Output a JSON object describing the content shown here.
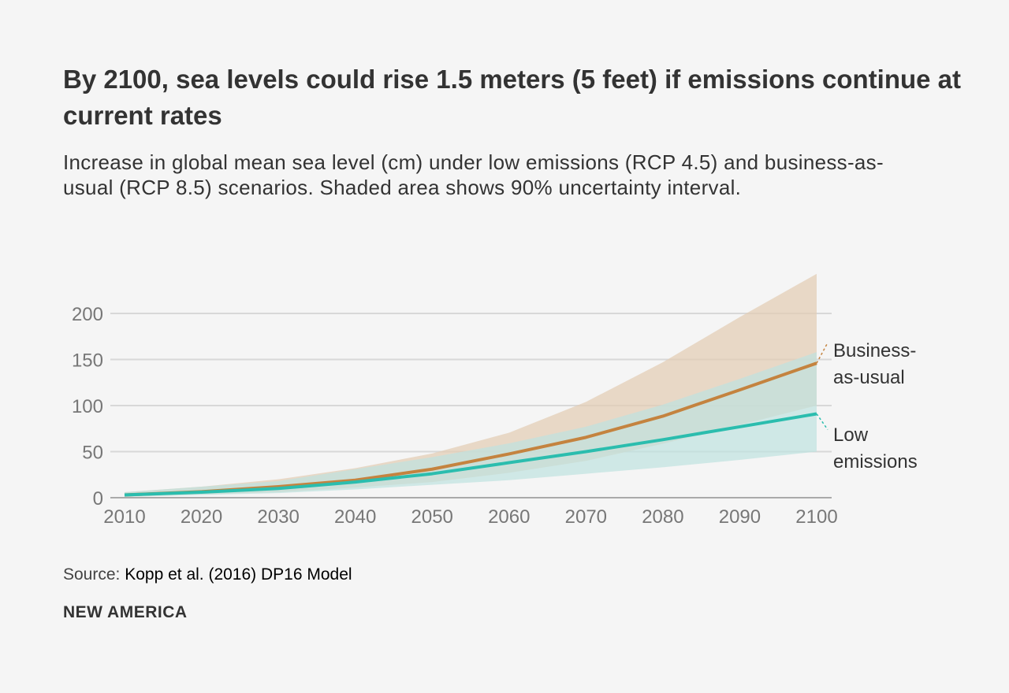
{
  "title": "By 2100, sea levels could rise 1.5 meters (5 feet) if emissions continue at current rates",
  "subtitle": "Increase in global mean sea level (cm) under low emissions (RCP 4.5) and business-as-usual (RCP 8.5) scenarios. Shaded area shows 90% uncertainty interval.",
  "source_label": "Source:",
  "source_text": "Kopp et al. (2016) DP16 Model",
  "brand": "NEW AMERICA",
  "chart_data": {
    "type": "line",
    "x": [
      2010,
      2020,
      2030,
      2040,
      2050,
      2060,
      2070,
      2080,
      2090,
      2100
    ],
    "xlim": [
      2010,
      2100
    ],
    "ylim": [
      0,
      200
    ],
    "x_ticks": [
      "2010",
      "2020",
      "2030",
      "2040",
      "2050",
      "2060",
      "2070",
      "2080",
      "2090",
      "2100"
    ],
    "y_ticks": [
      "0",
      "50",
      "100",
      "150",
      "200"
    ],
    "grid": "horizontal",
    "series": [
      {
        "name_lines": [
          "Business-",
          "as-usual"
        ],
        "color": "#c4833f",
        "band_color": "#e3cdb5",
        "values": [
          3,
          6.5,
          12,
          19,
          31,
          47.5,
          65.5,
          88.5,
          117,
          146
        ],
        "lower": [
          1,
          3.5,
          6,
          11,
          17,
          27,
          40,
          58.5,
          79,
          100
        ],
        "upper": [
          6,
          12,
          20,
          32,
          48,
          70.5,
          104,
          147,
          196,
          243
        ]
      },
      {
        "name_lines": [
          "Low",
          "emissions"
        ],
        "color": "#2bbdae",
        "band_color": "#bfe3df",
        "values": [
          3,
          6,
          10,
          17,
          26,
          38,
          50,
          63,
          77,
          91
        ],
        "lower": [
          1,
          3,
          5,
          9,
          14,
          19,
          26,
          33,
          41,
          50
        ],
        "upper": [
          6,
          12,
          18,
          31,
          44,
          59,
          77,
          101,
          129,
          158
        ]
      }
    ]
  }
}
